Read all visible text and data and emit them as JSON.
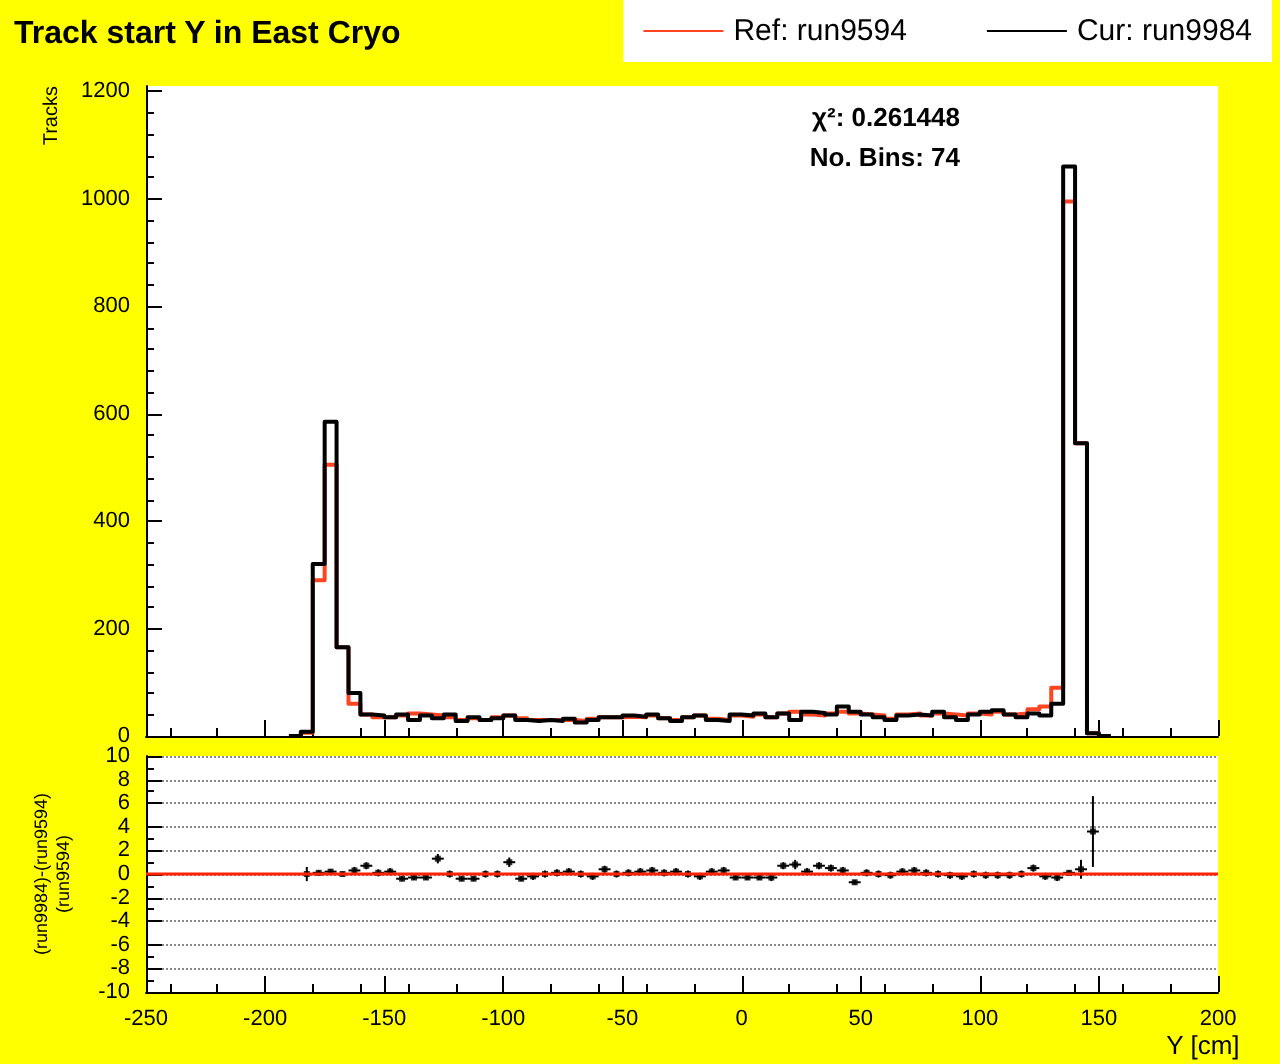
{
  "chart_data": [
    {
      "type": "histogram",
      "title": "Track start Y in East Cryo",
      "ylabel": "Tracks",
      "annotations": [
        "χ²: 0.261448",
        "No. Bins: 74"
      ],
      "bins": [
        -190,
        -185,
        -180,
        -175,
        -170,
        -165,
        -160,
        -155,
        -150,
        -145,
        -140,
        -135,
        -130,
        -125,
        -120,
        -115,
        -110,
        -105,
        -100,
        -95,
        -90,
        -85,
        -80,
        -75,
        -70,
        -65,
        -60,
        -55,
        -50,
        -45,
        -40,
        -35,
        -30,
        -25,
        -20,
        -15,
        -10,
        -5,
        0,
        5,
        10,
        15,
        20,
        25,
        30,
        35,
        40,
        45,
        50,
        55,
        60,
        65,
        70,
        75,
        80,
        85,
        90,
        95,
        100,
        105,
        110,
        115,
        120,
        125,
        130,
        135,
        140,
        145,
        150,
        155
      ],
      "series": [
        {
          "name": "Ref: run9594",
          "color": "#ff4422",
          "values": [
            0,
            6,
            290,
            505,
            165,
            60,
            40,
            35,
            35,
            38,
            42,
            40,
            38,
            35,
            30,
            33,
            30,
            35,
            38,
            33,
            30,
            30,
            30,
            30,
            28,
            32,
            35,
            35,
            36,
            35,
            38,
            33,
            30,
            35,
            38,
            32,
            30,
            38,
            36,
            40,
            35,
            42,
            45,
            40,
            38,
            42,
            45,
            42,
            40,
            38,
            32,
            40,
            42,
            38,
            42,
            40,
            38,
            42,
            40,
            45,
            40,
            42,
            50,
            55,
            90,
            995,
            545,
            5,
            0
          ]
        },
        {
          "name": "Cur: run9984",
          "color": "#000000",
          "values": [
            0,
            8,
            320,
            585,
            165,
            80,
            40,
            38,
            35,
            40,
            30,
            38,
            33,
            40,
            28,
            35,
            30,
            33,
            38,
            30,
            28,
            30,
            28,
            32,
            25,
            30,
            35,
            35,
            38,
            36,
            40,
            33,
            28,
            35,
            38,
            30,
            28,
            40,
            38,
            42,
            35,
            42,
            30,
            45,
            43,
            40,
            55,
            45,
            40,
            35,
            30,
            38,
            40,
            38,
            45,
            35,
            30,
            40,
            45,
            48,
            40,
            35,
            42,
            38,
            60,
            1060,
            545,
            5,
            0
          ]
        }
      ],
      "xlim": [
        -250,
        200
      ],
      "xticks": [
        -250,
        -200,
        -150,
        -100,
        -50,
        0,
        50,
        100,
        150,
        200
      ],
      "ylim": [
        0,
        1210
      ],
      "yticks": [
        0,
        200,
        400,
        600,
        800,
        1000,
        1200
      ],
      "tick_labels": "y",
      "legend": "top right",
      "grid": false
    },
    {
      "type": "scatter",
      "xlabel": "Y [cm]",
      "ylabel": "(run9984)-(run9594)\n(run9594)",
      "x": [
        -182.5,
        -177.5,
        -172.5,
        -167.5,
        -162.5,
        -157.5,
        -152.5,
        -147.5,
        -142.5,
        -137.5,
        -132.5,
        -127.5,
        -122.5,
        -117.5,
        -112.5,
        -107.5,
        -102.5,
        -97.5,
        -92.5,
        -87.5,
        -82.5,
        -77.5,
        -72.5,
        -67.5,
        -62.5,
        -57.5,
        -52.5,
        -47.5,
        -42.5,
        -37.5,
        -32.5,
        -27.5,
        -22.5,
        -17.5,
        -12.5,
        -7.5,
        -2.5,
        2.5,
        7.5,
        12.5,
        17.5,
        22.5,
        27.5,
        32.5,
        37.5,
        42.5,
        47.5,
        52.5,
        57.5,
        62.5,
        67.5,
        72.5,
        77.5,
        82.5,
        87.5,
        92.5,
        97.5,
        102.5,
        107.5,
        112.5,
        117.5,
        122.5,
        127.5,
        132.5,
        137.5,
        142.5,
        147.5
      ],
      "series": [
        {
          "color": "#000000",
          "values": [
            0.0,
            0.1,
            0.2,
            0.0,
            0.3,
            0.7,
            0.1,
            0.2,
            -0.4,
            -0.3,
            -0.3,
            1.3,
            0.0,
            -0.4,
            -0.4,
            0.0,
            0.0,
            1.0,
            -0.4,
            -0.2,
            0.0,
            0.1,
            0.2,
            0.0,
            -0.2,
            0.4,
            0.0,
            0.1,
            0.2,
            0.3,
            0.1,
            0.2,
            0.0,
            -0.2,
            0.2,
            0.3,
            -0.3,
            -0.3,
            -0.3,
            -0.3,
            0.7,
            0.8,
            0.2,
            0.7,
            0.5,
            0.3,
            -0.7,
            0.1,
            0.0,
            -0.1,
            0.2,
            0.3,
            0.1,
            0.0,
            -0.1,
            -0.2,
            0.0,
            -0.1,
            -0.1,
            -0.1,
            0.0,
            0.5,
            -0.2,
            -0.3,
            0.1,
            0.4,
            3.6
          ],
          "errors": [
            0.6,
            0.2,
            0.2,
            0.2,
            0.3,
            0.3,
            0.3,
            0.3,
            0.2,
            0.2,
            0.2,
            0.4,
            0.3,
            0.2,
            0.2,
            0.3,
            0.3,
            0.4,
            0.2,
            0.3,
            0.3,
            0.3,
            0.3,
            0.3,
            0.3,
            0.3,
            0.3,
            0.3,
            0.3,
            0.3,
            0.3,
            0.3,
            0.3,
            0.3,
            0.3,
            0.3,
            0.2,
            0.2,
            0.2,
            0.3,
            0.3,
            0.4,
            0.3,
            0.3,
            0.3,
            0.3,
            0.2,
            0.3,
            0.3,
            0.3,
            0.3,
            0.3,
            0.3,
            0.3,
            0.3,
            0.3,
            0.3,
            0.3,
            0.3,
            0.3,
            0.3,
            0.3,
            0.3,
            0.3,
            0.2,
            0.8,
            3.0
          ],
          "xerrors": [
            2.5,
            2.5,
            2.5,
            2.5,
            2.5,
            2.5,
            2.5,
            2.5,
            2.5,
            2.5,
            2.5,
            2.5,
            2.5,
            2.5,
            2.5,
            2.5,
            2.5,
            2.5,
            2.5,
            2.5,
            2.5,
            2.5,
            2.5,
            2.5,
            2.5,
            2.5,
            2.5,
            2.5,
            2.5,
            2.5,
            2.5,
            2.5,
            2.5,
            2.5,
            2.5,
            2.5,
            2.5,
            2.5,
            2.5,
            2.5,
            2.5,
            2.5,
            2.5,
            2.5,
            2.5,
            2.5,
            2.5,
            2.5,
            2.5,
            2.5,
            2.5,
            2.5,
            2.5,
            2.5,
            2.5,
            2.5,
            2.5,
            2.5,
            2.5,
            2.5,
            2.5,
            2.5,
            2.5,
            2.5,
            2.5,
            2.5,
            2.5
          ]
        }
      ],
      "xlim": [
        -250,
        200
      ],
      "xticks": [
        -250,
        -200,
        -150,
        -100,
        -50,
        0,
        50,
        100,
        150,
        200
      ],
      "ylim": [
        -10,
        10
      ],
      "yticks": [
        -10,
        -8,
        -6,
        -4,
        -2,
        0,
        2,
        4,
        6,
        8,
        10
      ],
      "ref_lines": [
        {
          "axis": "y",
          "value": 0,
          "color": "#ff2200"
        }
      ],
      "grid": "y",
      "marker": "square"
    }
  ]
}
